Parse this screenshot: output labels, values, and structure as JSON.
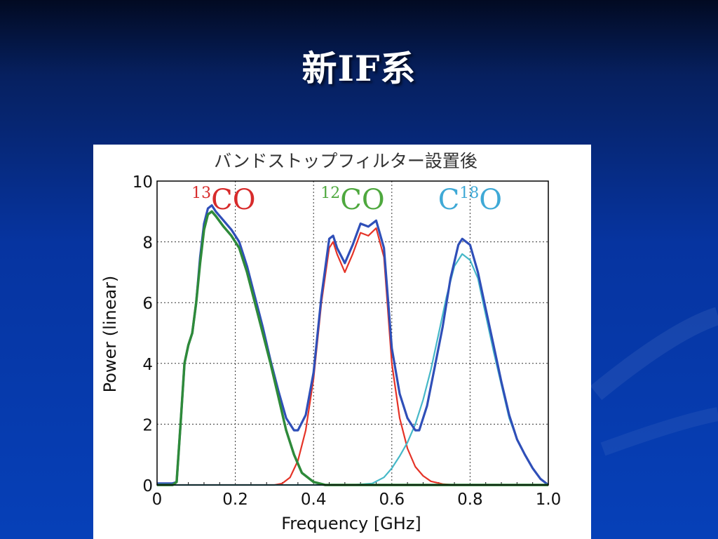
{
  "slide": {
    "title": "新IF系"
  },
  "colors": {
    "background": "#0634a0",
    "total": "#2f4fb8",
    "co13": "#2e8a3a",
    "co12": "#e53327",
    "c18o": "#46b8c8",
    "label_co13": "#d72b2b",
    "label_co12": "#4ea83e",
    "label_c18o": "#3fa9d6"
  },
  "chart_data": {
    "type": "line",
    "title": "バンドストップフィルター設置後",
    "xlabel": "Frequency [GHz]",
    "ylabel": "Power (linear)",
    "xlim": [
      0,
      1.0
    ],
    "ylim": [
      0,
      10
    ],
    "grid": true,
    "x_ticks": [
      "0",
      "0.2",
      "0.4",
      "0.6",
      "0.8",
      "1.0"
    ],
    "y_ticks": [
      "0",
      "2",
      "4",
      "6",
      "8",
      "10"
    ],
    "annotations": [
      {
        "id": "co13",
        "base": "CO",
        "sup": "13",
        "sup_position": "prefix",
        "x": 0.17
      },
      {
        "id": "co12",
        "base": "CO",
        "sup": "12",
        "sup_position": "prefix",
        "x": 0.5
      },
      {
        "id": "c18o",
        "pre": "C",
        "sup": "18",
        "post": "O",
        "sup_position": "infix",
        "x": 0.8
      }
    ],
    "series": [
      {
        "id": "co13",
        "points": [
          [
            0,
            0
          ],
          [
            0.04,
            0
          ],
          [
            0.05,
            0.1
          ],
          [
            0.06,
            2.0
          ],
          [
            0.07,
            4.0
          ],
          [
            0.08,
            4.6
          ],
          [
            0.09,
            5.0
          ],
          [
            0.1,
            6.0
          ],
          [
            0.11,
            7.3
          ],
          [
            0.12,
            8.4
          ],
          [
            0.13,
            8.9
          ],
          [
            0.14,
            9.0
          ],
          [
            0.15,
            8.85
          ],
          [
            0.17,
            8.5
          ],
          [
            0.19,
            8.2
          ],
          [
            0.21,
            7.8
          ],
          [
            0.23,
            7.0
          ],
          [
            0.25,
            6.0
          ],
          [
            0.27,
            5.0
          ],
          [
            0.29,
            4.0
          ],
          [
            0.31,
            2.9
          ],
          [
            0.33,
            1.8
          ],
          [
            0.35,
            1.0
          ],
          [
            0.37,
            0.4
          ],
          [
            0.4,
            0.1
          ],
          [
            0.43,
            0
          ],
          [
            1.0,
            0
          ]
        ]
      },
      {
        "id": "co12",
        "points": [
          [
            0,
            0
          ],
          [
            0.3,
            0
          ],
          [
            0.32,
            0.05
          ],
          [
            0.34,
            0.25
          ],
          [
            0.36,
            0.8
          ],
          [
            0.38,
            1.8
          ],
          [
            0.4,
            3.5
          ],
          [
            0.42,
            6.0
          ],
          [
            0.44,
            7.8
          ],
          [
            0.45,
            8.0
          ],
          [
            0.46,
            7.6
          ],
          [
            0.48,
            7.0
          ],
          [
            0.5,
            7.6
          ],
          [
            0.52,
            8.3
          ],
          [
            0.54,
            8.2
          ],
          [
            0.56,
            8.45
          ],
          [
            0.58,
            7.5
          ],
          [
            0.6,
            4.0
          ],
          [
            0.62,
            2.2
          ],
          [
            0.64,
            1.2
          ],
          [
            0.66,
            0.6
          ],
          [
            0.68,
            0.3
          ],
          [
            0.7,
            0.12
          ],
          [
            0.73,
            0.03
          ],
          [
            0.76,
            0
          ],
          [
            1.0,
            0
          ]
        ]
      },
      {
        "id": "c18o",
        "points": [
          [
            0,
            0
          ],
          [
            0.5,
            0
          ],
          [
            0.55,
            0.05
          ],
          [
            0.58,
            0.25
          ],
          [
            0.6,
            0.55
          ],
          [
            0.62,
            0.95
          ],
          [
            0.64,
            1.4
          ],
          [
            0.66,
            2.0
          ],
          [
            0.68,
            2.8
          ],
          [
            0.7,
            3.8
          ],
          [
            0.72,
            5.0
          ],
          [
            0.74,
            6.2
          ],
          [
            0.76,
            7.2
          ],
          [
            0.78,
            7.6
          ],
          [
            0.8,
            7.4
          ],
          [
            0.82,
            6.8
          ],
          [
            0.84,
            5.6
          ],
          [
            0.86,
            4.4
          ],
          [
            0.88,
            3.3
          ],
          [
            0.9,
            2.2
          ],
          [
            0.92,
            1.5
          ],
          [
            0.94,
            1.0
          ],
          [
            0.96,
            0.55
          ],
          [
            0.98,
            0.2
          ],
          [
            1.0,
            0
          ]
        ]
      },
      {
        "id": "total",
        "points": [
          [
            0,
            0.05
          ],
          [
            0.04,
            0.05
          ],
          [
            0.05,
            0.1
          ],
          [
            0.06,
            2.0
          ],
          [
            0.07,
            4.0
          ],
          [
            0.08,
            4.6
          ],
          [
            0.09,
            5.0
          ],
          [
            0.1,
            6.0
          ],
          [
            0.11,
            7.5
          ],
          [
            0.12,
            8.6
          ],
          [
            0.13,
            9.1
          ],
          [
            0.14,
            9.2
          ],
          [
            0.15,
            9.0
          ],
          [
            0.17,
            8.7
          ],
          [
            0.19,
            8.4
          ],
          [
            0.21,
            8.0
          ],
          [
            0.23,
            7.2
          ],
          [
            0.25,
            6.2
          ],
          [
            0.27,
            5.2
          ],
          [
            0.29,
            4.1
          ],
          [
            0.31,
            3.1
          ],
          [
            0.33,
            2.2
          ],
          [
            0.35,
            1.8
          ],
          [
            0.36,
            1.8
          ],
          [
            0.38,
            2.3
          ],
          [
            0.4,
            3.7
          ],
          [
            0.42,
            6.2
          ],
          [
            0.44,
            8.1
          ],
          [
            0.45,
            8.2
          ],
          [
            0.46,
            7.8
          ],
          [
            0.48,
            7.3
          ],
          [
            0.5,
            7.9
          ],
          [
            0.52,
            8.6
          ],
          [
            0.54,
            8.5
          ],
          [
            0.56,
            8.7
          ],
          [
            0.58,
            7.8
          ],
          [
            0.6,
            4.5
          ],
          [
            0.62,
            3.0
          ],
          [
            0.64,
            2.2
          ],
          [
            0.66,
            1.8
          ],
          [
            0.67,
            1.8
          ],
          [
            0.69,
            2.6
          ],
          [
            0.71,
            3.9
          ],
          [
            0.73,
            5.2
          ],
          [
            0.75,
            6.8
          ],
          [
            0.77,
            7.9
          ],
          [
            0.78,
            8.1
          ],
          [
            0.8,
            7.9
          ],
          [
            0.82,
            7.0
          ],
          [
            0.84,
            5.8
          ],
          [
            0.86,
            4.6
          ],
          [
            0.88,
            3.4
          ],
          [
            0.9,
            2.3
          ],
          [
            0.92,
            1.5
          ],
          [
            0.94,
            1.0
          ],
          [
            0.96,
            0.55
          ],
          [
            0.98,
            0.2
          ],
          [
            1.0,
            0
          ]
        ]
      }
    ]
  }
}
